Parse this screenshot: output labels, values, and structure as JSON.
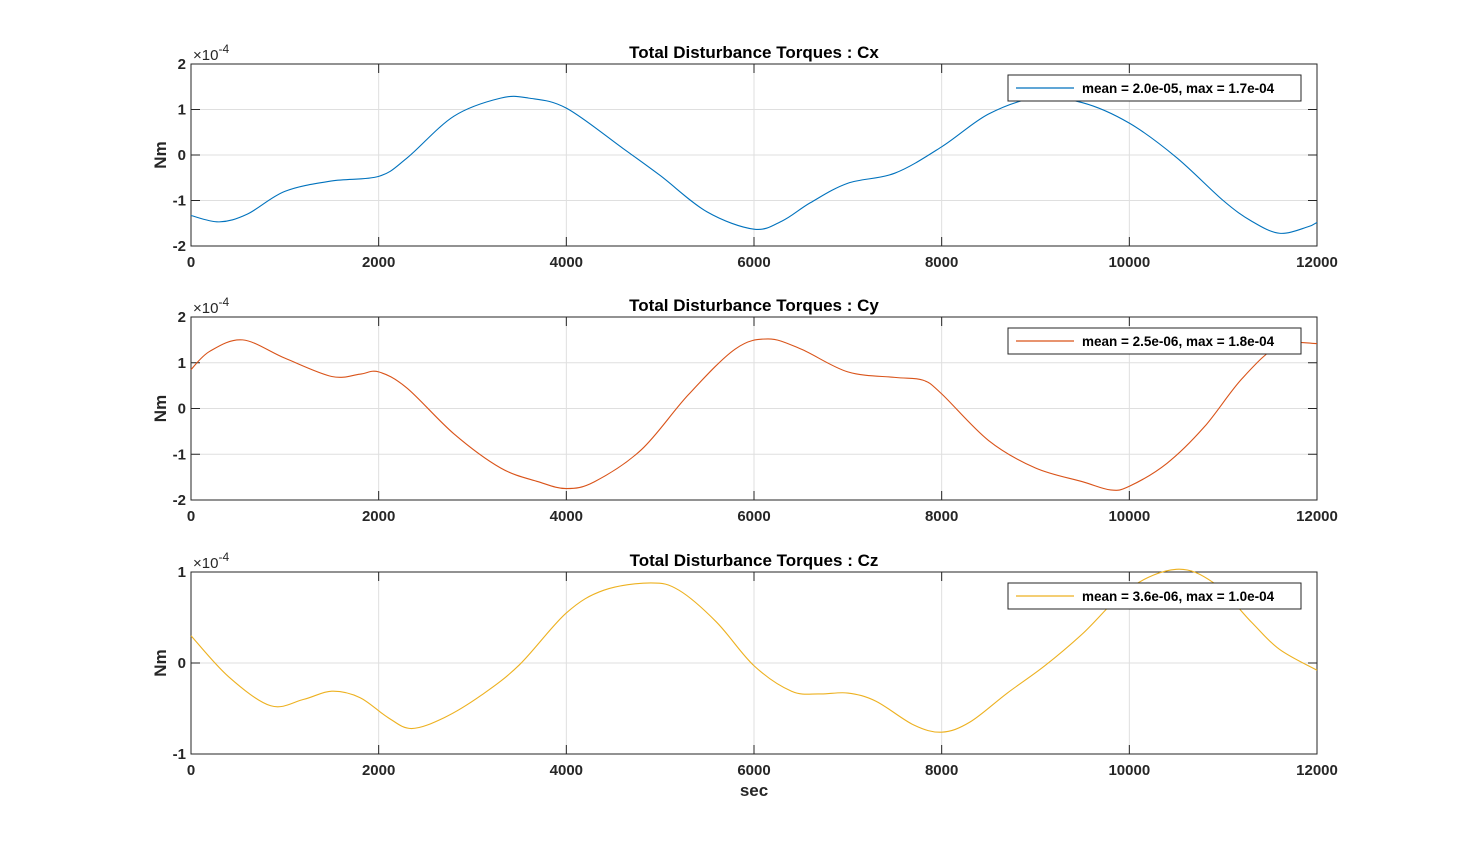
{
  "figure": {
    "xlabel": "sec",
    "background": "#ffffff"
  },
  "chart_data": [
    {
      "type": "line",
      "title": "Total Disturbance Torques : Cx",
      "ylabel": "Nm",
      "exponent_base": "×10",
      "exponent_power": "-4",
      "xlim": [
        0,
        12000
      ],
      "ylim": [
        -2,
        2
      ],
      "xticks": [
        0,
        2000,
        4000,
        6000,
        8000,
        10000,
        12000
      ],
      "xtick_labels": [
        "0",
        "2000",
        "4000",
        "6000",
        "8000",
        "10000",
        "12000"
      ],
      "yticks": [
        -2,
        -1,
        0,
        1,
        2
      ],
      "ytick_labels": [
        "-2",
        "-1",
        "0",
        "1",
        "2"
      ],
      "grid": true,
      "legend_position": "top-right",
      "color": "#0072BD",
      "series": [
        {
          "name": "mean = 2.0e-05, max = 1.7e-04",
          "x": [
            0,
            300,
            600,
            1000,
            1500,
            2000,
            2300,
            2800,
            3300,
            3600,
            4000,
            4600,
            5000,
            5500,
            6000,
            6300,
            6600,
            7000,
            7500,
            8000,
            8500,
            9000,
            9500,
            10000,
            10500,
            11000,
            11300,
            11600,
            11900,
            12000
          ],
          "y": [
            -1.33,
            -1.47,
            -1.3,
            -0.8,
            -0.57,
            -0.47,
            -0.07,
            0.85,
            1.25,
            1.25,
            1.03,
            0.15,
            -0.45,
            -1.25,
            -1.63,
            -1.45,
            -1.05,
            -0.62,
            -0.4,
            0.18,
            0.9,
            1.25,
            1.15,
            0.7,
            -0.05,
            -1.0,
            -1.45,
            -1.72,
            -1.58,
            -1.48
          ]
        }
      ]
    },
    {
      "type": "line",
      "title": "Total Disturbance Torques : Cy",
      "ylabel": "Nm",
      "exponent_base": "×10",
      "exponent_power": "-4",
      "xlim": [
        0,
        12000
      ],
      "ylim": [
        -2,
        2
      ],
      "xticks": [
        0,
        2000,
        4000,
        6000,
        8000,
        10000,
        12000
      ],
      "xtick_labels": [
        "0",
        "2000",
        "4000",
        "6000",
        "8000",
        "10000",
        "12000"
      ],
      "yticks": [
        -2,
        -1,
        0,
        1,
        2
      ],
      "ytick_labels": [
        "-2",
        "-1",
        "0",
        "1",
        "2"
      ],
      "grid": true,
      "legend_position": "top-right",
      "color": "#D95319",
      "series": [
        {
          "name": "mean = 2.5e-06, max = 1.8e-04",
          "x": [
            0,
            200,
            550,
            1000,
            1500,
            1800,
            2000,
            2300,
            2800,
            3300,
            3700,
            4000,
            4300,
            4800,
            5300,
            5800,
            6150,
            6500,
            7000,
            7500,
            7800,
            8000,
            8500,
            9000,
            9500,
            9800,
            10000,
            10400,
            10800,
            11200,
            11600,
            12000
          ],
          "y": [
            0.85,
            1.25,
            1.5,
            1.1,
            0.7,
            0.75,
            0.8,
            0.45,
            -0.55,
            -1.3,
            -1.6,
            -1.75,
            -1.6,
            -0.9,
            0.3,
            1.3,
            1.52,
            1.3,
            0.8,
            0.68,
            0.62,
            0.32,
            -0.7,
            -1.3,
            -1.6,
            -1.78,
            -1.7,
            -1.2,
            -0.4,
            0.65,
            1.38,
            1.42
          ]
        }
      ]
    },
    {
      "type": "line",
      "title": "Total Disturbance Torques : Cz",
      "ylabel": "Nm",
      "exponent_base": "×10",
      "exponent_power": "-4",
      "xlim": [
        0,
        12000
      ],
      "ylim": [
        -1,
        1
      ],
      "xticks": [
        0,
        2000,
        4000,
        6000,
        8000,
        10000,
        12000
      ],
      "xtick_labels": [
        "0",
        "2000",
        "4000",
        "6000",
        "8000",
        "10000",
        "12000"
      ],
      "yticks": [
        -1,
        0,
        1
      ],
      "ytick_labels": [
        "-1",
        "0",
        "1"
      ],
      "grid": true,
      "legend_position": "top-right",
      "color": "#EDB120",
      "series": [
        {
          "name": "mean = 3.6e-06, max = 1.0e-04",
          "x": [
            0,
            400,
            850,
            1200,
            1500,
            1800,
            2100,
            2350,
            2700,
            3100,
            3500,
            4000,
            4400,
            4900,
            5200,
            5600,
            6000,
            6400,
            6700,
            7000,
            7300,
            7700,
            8000,
            8300,
            8700,
            9100,
            9500,
            10000,
            10500,
            10900,
            11300,
            11600,
            12000
          ],
          "y": [
            0.3,
            -0.15,
            -0.47,
            -0.4,
            -0.31,
            -0.38,
            -0.6,
            -0.72,
            -0.6,
            -0.35,
            -0.02,
            0.55,
            0.8,
            0.88,
            0.8,
            0.45,
            -0.03,
            -0.31,
            -0.34,
            -0.33,
            -0.42,
            -0.68,
            -0.76,
            -0.65,
            -0.33,
            -0.03,
            0.32,
            0.82,
            1.03,
            0.88,
            0.45,
            0.15,
            -0.08
          ]
        }
      ]
    }
  ]
}
